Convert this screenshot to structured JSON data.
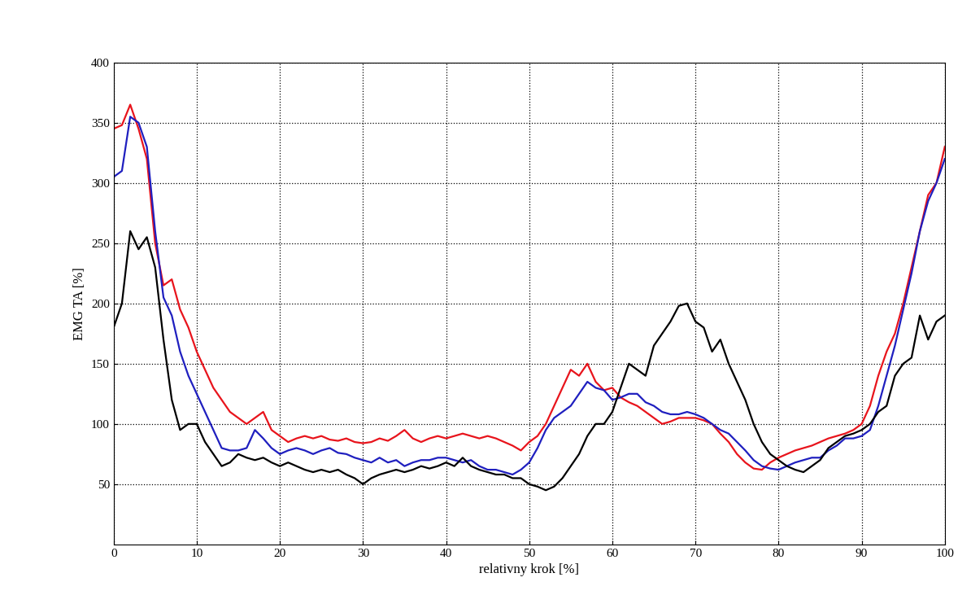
{
  "chart_data": {
    "type": "line",
    "xlabel": "relativny krok [%]",
    "ylabel": "EMG TA [%]",
    "x": [
      0,
      1,
      2,
      3,
      4,
      5,
      6,
      7,
      8,
      9,
      10,
      11,
      12,
      13,
      14,
      15,
      16,
      17,
      18,
      19,
      20,
      21,
      22,
      23,
      24,
      25,
      26,
      27,
      28,
      29,
      30,
      31,
      32,
      33,
      34,
      35,
      36,
      37,
      38,
      39,
      40,
      41,
      42,
      43,
      44,
      45,
      46,
      47,
      48,
      49,
      50,
      51,
      52,
      53,
      54,
      55,
      56,
      57,
      58,
      59,
      60,
      61,
      62,
      63,
      64,
      65,
      66,
      67,
      68,
      69,
      70,
      71,
      72,
      73,
      74,
      75,
      76,
      77,
      78,
      79,
      80,
      81,
      82,
      83,
      84,
      85,
      86,
      87,
      88,
      89,
      90,
      91,
      92,
      93,
      94,
      95,
      96,
      97,
      98,
      99,
      100
    ],
    "series": [
      {
        "color": "#e8141c",
        "line_style": "solid",
        "values": [
          345,
          348,
          365,
          345,
          320,
          250,
          215,
          220,
          195,
          180,
          160,
          145,
          130,
          120,
          110,
          105,
          100,
          105,
          110,
          95,
          90,
          85,
          88,
          90,
          88,
          90,
          87,
          86,
          88,
          85,
          84,
          85,
          88,
          86,
          90,
          95,
          88,
          85,
          88,
          90,
          88,
          90,
          92,
          90,
          88,
          90,
          88,
          85,
          82,
          78,
          85,
          90,
          100,
          115,
          130,
          145,
          140,
          150,
          135,
          128,
          130,
          122,
          118,
          115,
          110,
          105,
          100,
          102,
          105,
          105,
          105,
          103,
          100,
          92,
          85,
          75,
          68,
          63,
          62,
          68,
          72,
          75,
          78,
          80,
          82,
          85,
          88,
          90,
          92,
          95,
          100,
          115,
          140,
          160,
          175,
          200,
          230,
          260,
          290,
          300,
          330
        ]
      },
      {
        "color": "#1f1fbf",
        "line_style": "solid",
        "values": [
          305,
          310,
          355,
          350,
          330,
          260,
          205,
          190,
          160,
          140,
          125,
          110,
          95,
          80,
          78,
          78,
          80,
          95,
          88,
          80,
          75,
          78,
          80,
          78,
          75,
          78,
          80,
          76,
          75,
          72,
          70,
          68,
          72,
          68,
          70,
          65,
          68,
          70,
          70,
          72,
          72,
          70,
          68,
          70,
          65,
          62,
          62,
          60,
          58,
          62,
          68,
          80,
          95,
          105,
          110,
          115,
          125,
          135,
          130,
          128,
          120,
          122,
          125,
          125,
          118,
          115,
          110,
          108,
          108,
          110,
          108,
          105,
          100,
          95,
          92,
          85,
          78,
          70,
          65,
          63,
          62,
          65,
          68,
          70,
          72,
          72,
          78,
          82,
          88,
          88,
          90,
          95,
          115,
          140,
          165,
          195,
          225,
          260,
          285,
          300,
          320
        ]
      },
      {
        "color": "#000000",
        "line_style": "solid",
        "values": [
          180,
          200,
          260,
          245,
          255,
          230,
          170,
          120,
          95,
          100,
          100,
          85,
          75,
          65,
          68,
          75,
          72,
          70,
          72,
          68,
          65,
          68,
          65,
          62,
          60,
          62,
          60,
          62,
          58,
          55,
          50,
          55,
          58,
          60,
          62,
          60,
          62,
          65,
          63,
          65,
          68,
          65,
          72,
          65,
          62,
          60,
          58,
          58,
          55,
          55,
          50,
          48,
          45,
          48,
          55,
          65,
          75,
          90,
          100,
          100,
          110,
          130,
          150,
          145,
          140,
          165,
          175,
          185,
          198,
          200,
          185,
          180,
          160,
          170,
          150,
          135,
          120,
          100,
          85,
          75,
          70,
          65,
          62,
          60,
          65,
          70,
          80,
          85,
          90,
          92,
          95,
          100,
          110,
          115,
          140,
          150,
          155,
          190,
          170,
          185,
          190
        ]
      }
    ],
    "xlim": [
      0,
      100
    ],
    "xticks": [
      0,
      10,
      20,
      30,
      40,
      50,
      60,
      70,
      80,
      90,
      100
    ],
    "ylim": [
      0,
      400
    ],
    "yticks": [
      50,
      100,
      150,
      200,
      250,
      300,
      350,
      400
    ],
    "grid": true
  }
}
